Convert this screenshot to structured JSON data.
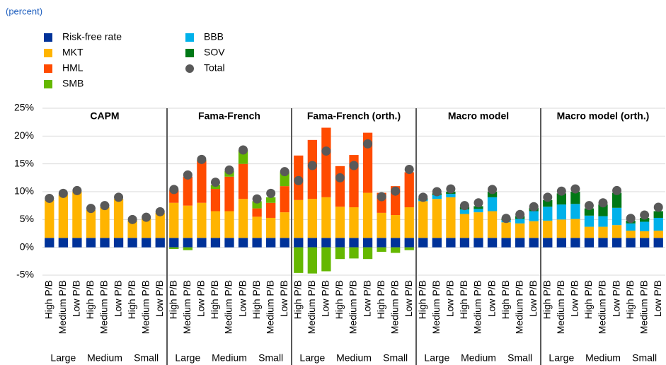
{
  "chart_data": {
    "type": "bar",
    "stacked": true,
    "subtitle": "(percent)",
    "ylim": [
      -5,
      25
    ],
    "yticks": [
      {
        "value": -5,
        "label": "-5%"
      },
      {
        "value": 0,
        "label": "0%"
      },
      {
        "value": 5,
        "label": "5%"
      },
      {
        "value": 10,
        "label": "10%"
      },
      {
        "value": 15,
        "label": "15%"
      },
      {
        "value": 20,
        "label": "20%"
      },
      {
        "value": 25,
        "label": "25%"
      }
    ],
    "grid": true,
    "panels": [
      "CAPM",
      "Fama-French",
      "Fama-French (orth.)",
      "Macro model",
      "Macro model (orth.)"
    ],
    "categories": [
      "High P/B",
      "Medium P/B",
      "Low P/B"
    ],
    "groups": [
      "Large",
      "Medium",
      "Small"
    ],
    "series": [
      {
        "name": "Risk-free rate",
        "color": "#003299",
        "values": [
          [
            1.7,
            1.7,
            1.7,
            1.7,
            1.7,
            1.7,
            1.7,
            1.7,
            1.7
          ],
          [
            1.7,
            1.7,
            1.7,
            1.7,
            1.7,
            1.7,
            1.7,
            1.7,
            1.7
          ],
          [
            1.7,
            1.7,
            1.7,
            1.7,
            1.7,
            1.7,
            1.7,
            1.7,
            1.7
          ],
          [
            1.7,
            1.7,
            1.7,
            1.7,
            1.7,
            1.7,
            1.7,
            1.7,
            1.7
          ],
          [
            1.7,
            1.7,
            1.7,
            1.7,
            1.7,
            1.7,
            1.7,
            1.7,
            1.7
          ]
        ]
      },
      {
        "name": "MKT",
        "color": "#ffb400",
        "values": [
          [
            6.8,
            7.8,
            8.3,
            5.0,
            5.5,
            7.0,
            3.1,
            3.5,
            4.5
          ],
          [
            6.3,
            5.8,
            6.3,
            4.8,
            4.8,
            7.0,
            3.8,
            3.6,
            4.6
          ],
          [
            6.8,
            7.0,
            7.3,
            5.6,
            5.5,
            8.1,
            4.5,
            4.1,
            5.5
          ],
          [
            6.6,
            7.0,
            7.3,
            4.3,
            4.6,
            4.8,
            2.8,
            2.6,
            3.0
          ],
          [
            3.1,
            3.3,
            3.4,
            2.0,
            2.0,
            2.3,
            1.3,
            1.2,
            1.3
          ]
        ]
      },
      {
        "name": "HML",
        "color": "#ff4b00",
        "values": [
          [
            null,
            null,
            null,
            null,
            null,
            null,
            null,
            null,
            null
          ],
          [
            2.3,
            5.2,
            7.5,
            4.0,
            6.2,
            6.3,
            1.5,
            2.7,
            4.7
          ],
          [
            8.0,
            10.6,
            12.5,
            7.3,
            9.4,
            10.8,
            3.6,
            5.2,
            6.3
          ],
          [
            null,
            null,
            null,
            null,
            null,
            null,
            null,
            null,
            null
          ],
          [
            null,
            null,
            null,
            null,
            null,
            null,
            null,
            null,
            null
          ]
        ]
      },
      {
        "name": "SMB",
        "color": "#65b800",
        "values": [
          [
            null,
            null,
            null,
            null,
            null,
            null,
            null,
            null,
            null
          ],
          [
            -0.3,
            -0.5,
            0.2,
            0.7,
            1.0,
            2.5,
            1.3,
            1.0,
            2.5
          ],
          [
            -4.6,
            -4.7,
            -4.3,
            -2.1,
            -2.0,
            -2.1,
            -0.8,
            -1.0,
            -0.5
          ],
          [
            null,
            null,
            null,
            null,
            null,
            null,
            null,
            null,
            null
          ],
          [
            null,
            null,
            null,
            null,
            null,
            null,
            null,
            null,
            null
          ]
        ]
      },
      {
        "name": "BBB",
        "color": "#00b1ea",
        "values": [
          [
            null,
            null,
            null,
            null,
            null,
            null,
            null,
            null,
            null
          ],
          [
            null,
            null,
            null,
            null,
            null,
            null,
            null,
            null,
            null
          ],
          [
            null,
            null,
            null,
            null,
            null,
            null,
            null,
            null,
            null
          ],
          [
            0.3,
            0.7,
            0.6,
            0.8,
            0.6,
            2.5,
            0.4,
            0.8,
            1.8
          ],
          [
            2.5,
            2.7,
            2.7,
            2.0,
            1.9,
            3.1,
            1.3,
            1.7,
            2.3
          ]
        ]
      },
      {
        "name": "SOV",
        "color": "#007816",
        "values": [
          [
            null,
            null,
            null,
            null,
            null,
            null,
            null,
            null,
            null
          ],
          [
            null,
            null,
            null,
            null,
            null,
            null,
            null,
            null,
            null
          ],
          [
            null,
            null,
            null,
            null,
            null,
            null,
            null,
            null,
            null
          ],
          [
            0.2,
            0.3,
            0.4,
            0.5,
            0.5,
            1.0,
            0.3,
            0.5,
            0.6
          ],
          [
            1.2,
            2.0,
            2.2,
            1.3,
            2.1,
            2.7,
            0.5,
            0.7,
            1.2
          ]
        ]
      },
      {
        "name": "Total",
        "color": "#595959",
        "marker": "circle",
        "values": [
          [
            8.8,
            9.7,
            10.2,
            7.0,
            7.5,
            9.0,
            5.0,
            5.4,
            6.4
          ],
          [
            10.4,
            13.0,
            15.8,
            11.7,
            13.9,
            17.5,
            8.7,
            9.7,
            13.6
          ],
          [
            12.0,
            14.7,
            17.3,
            12.5,
            14.7,
            18.6,
            9.1,
            10.1,
            14.0
          ],
          [
            9.0,
            10.0,
            10.5,
            7.5,
            8.0,
            10.4,
            5.2,
            5.9,
            7.3
          ],
          [
            9.0,
            10.1,
            10.5,
            7.5,
            8.0,
            10.2,
            5.2,
            5.8,
            7.2
          ]
        ]
      }
    ]
  }
}
